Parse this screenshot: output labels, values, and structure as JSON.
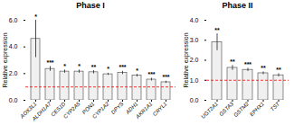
{
  "chart_data": [
    {
      "type": "bar",
      "title": "Phase I",
      "categories": [
        "AOX3L1",
        "ALDH1A7",
        "CES1D",
        "CYP2A5",
        "PON1",
        "CYP1A2",
        "DPYS",
        "ADH1",
        "AKR1A1",
        "CRYL1"
      ],
      "values": [
        4.6,
        2.35,
        2.15,
        2.15,
        2.1,
        1.95,
        2.05,
        1.85,
        1.55,
        1.35
      ],
      "errors": [
        1.4,
        0.18,
        0.12,
        0.12,
        0.12,
        0.08,
        0.12,
        0.1,
        0.1,
        0.08
      ],
      "annotations": [
        "*",
        "***",
        "*",
        "*",
        "**",
        "*",
        "***",
        "*",
        "***",
        "***"
      ],
      "ylabel": "Relative expression",
      "ylim": [
        0,
        6
      ],
      "yticks": [
        0,
        2,
        4,
        6
      ],
      "lines": [
        {
          "y": 1.0,
          "color": "red",
          "line_style": "dashed"
        }
      ],
      "color": "#f0f0f0",
      "grid": false
    },
    {
      "type": "bar",
      "title": "Phase II",
      "categories": [
        "UGT2A1",
        "GSTA3",
        "GSTM2",
        "EPHX1",
        "TST"
      ],
      "values": [
        2.9,
        1.62,
        1.52,
        1.35,
        1.25
      ],
      "errors": [
        0.42,
        0.12,
        0.08,
        0.07,
        0.08
      ],
      "annotations": [
        "**",
        "**",
        "***",
        "**",
        "**"
      ],
      "ylabel": "Relative expression",
      "ylim": [
        0,
        4
      ],
      "yticks": [
        0,
        1,
        2,
        3,
        4
      ],
      "lines": [
        {
          "y": 1.0,
          "color": "red",
          "line_style": "dashed"
        }
      ],
      "color": "#f0f0f0",
      "grid": false
    }
  ]
}
